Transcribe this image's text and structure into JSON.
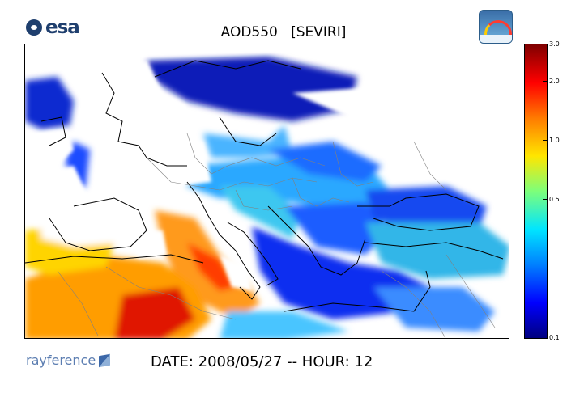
{
  "header": {
    "esa_logo_text": "esa",
    "title": "AOD550   [SEVIRI]"
  },
  "colorbar": {
    "ticks": [
      "3.0",
      "2.0",
      "1.0",
      "0.5",
      "0.1"
    ],
    "colormap": "jet",
    "scale": "log",
    "range": [
      0.1,
      3.0
    ]
  },
  "footer": {
    "partner_logo_text": "rayference",
    "date_line": "DATE: 2008/05/27 -- HOUR: 12"
  },
  "colors": {
    "esa_blue": "#1f3f6e",
    "rayference_blue": "#5b7db1",
    "land_outline": "#000000",
    "border_outline": "#808080"
  }
}
